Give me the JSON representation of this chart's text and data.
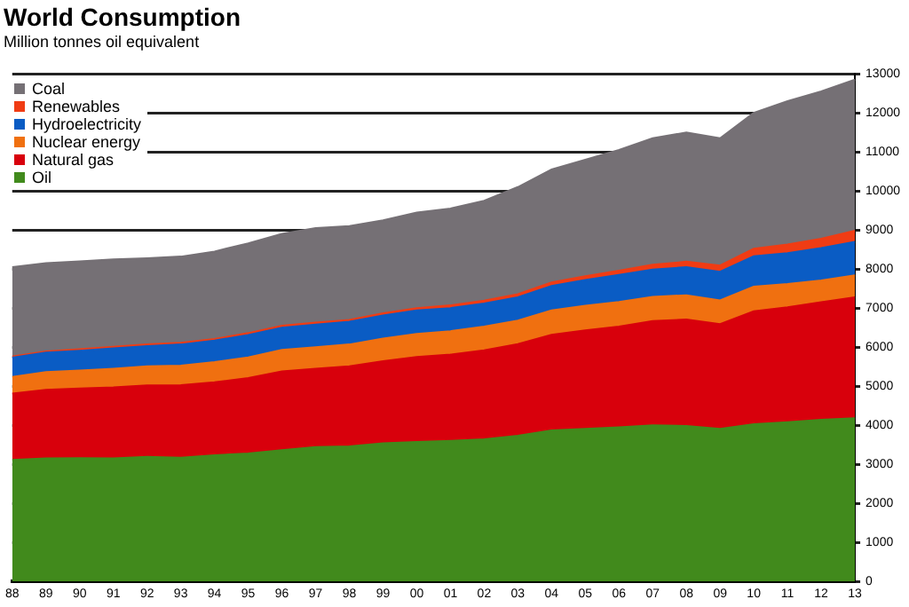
{
  "chart_data": {
    "type": "area",
    "title": "World Consumption",
    "subtitle": "Million tonnes oil equivalent",
    "categories": [
      "88",
      "89",
      "90",
      "91",
      "92",
      "93",
      "94",
      "95",
      "96",
      "97",
      "98",
      "99",
      "00",
      "01",
      "02",
      "03",
      "04",
      "05",
      "06",
      "07",
      "08",
      "09",
      "10",
      "11",
      "12",
      "13"
    ],
    "stacked": true,
    "legend": "top left",
    "grid": "y",
    "ylim": [
      0,
      13000
    ],
    "yticks": [
      0,
      1000,
      2000,
      3000,
      4000,
      5000,
      6000,
      7000,
      8000,
      9000,
      10000,
      11000,
      12000,
      13000
    ],
    "series": [
      {
        "name": "Oil",
        "color": "#418a1c",
        "values": [
          3110,
          3150,
          3160,
          3150,
          3190,
          3170,
          3230,
          3280,
          3360,
          3440,
          3460,
          3540,
          3570,
          3600,
          3640,
          3730,
          3870,
          3910,
          3950,
          4000,
          3980,
          3910,
          4030,
          4080,
          4140,
          4180
        ]
      },
      {
        "name": "Natural gas",
        "color": "#d8000c",
        "values": [
          1700,
          1760,
          1780,
          1820,
          1830,
          1860,
          1870,
          1930,
          2020,
          2010,
          2050,
          2100,
          2180,
          2210,
          2280,
          2350,
          2450,
          2520,
          2580,
          2670,
          2730,
          2680,
          2890,
          2940,
          3010,
          3100
        ]
      },
      {
        "name": "Nuclear energy",
        "color": "#f07010",
        "values": [
          430,
          450,
          460,
          480,
          490,
          500,
          520,
          530,
          550,
          550,
          560,
          580,
          590,
          600,
          610,
          600,
          620,
          630,
          630,
          620,
          620,
          610,
          630,
          600,
          560,
          560
        ]
      },
      {
        "name": "Hydroelectricity",
        "color": "#0a5cc4",
        "values": [
          490,
          500,
          510,
          520,
          520,
          540,
          550,
          570,
          570,
          580,
          580,
          590,
          600,
          590,
          590,
          600,
          630,
          660,
          690,
          700,
          720,
          730,
          780,
          790,
          830,
          860
        ]
      },
      {
        "name": "Renewables",
        "color": "#f03c14",
        "values": [
          30,
          30,
          40,
          40,
          40,
          40,
          40,
          50,
          50,
          50,
          50,
          60,
          60,
          70,
          70,
          80,
          90,
          100,
          110,
          120,
          140,
          160,
          190,
          220,
          240,
          280
        ]
      },
      {
        "name": "Coal",
        "color": "#757075",
        "values": [
          2290,
          2260,
          2250,
          2240,
          2210,
          2210,
          2240,
          2300,
          2350,
          2420,
          2400,
          2380,
          2450,
          2480,
          2560,
          2740,
          2890,
          2980,
          3090,
          3240,
          3310,
          3260,
          3480,
          3670,
          3770,
          3870
        ]
      }
    ]
  }
}
